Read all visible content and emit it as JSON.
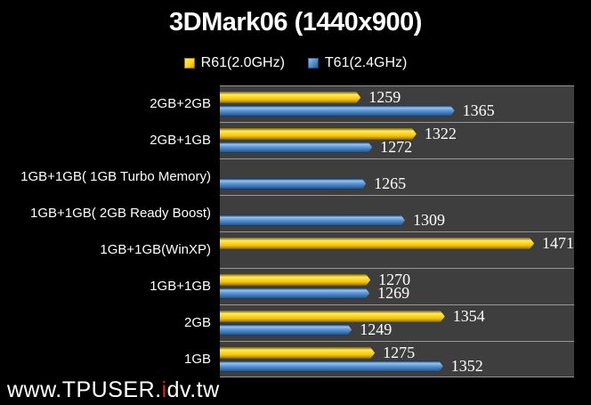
{
  "title": "3DMark06 (1440x900)",
  "watermark": {
    "prefix": "www.TPUSER.",
    "highlight": "i",
    "suffix": "dv.tw"
  },
  "colors": {
    "background": "#000000",
    "plot_background": "#3e3e3e",
    "gridline": "#969696",
    "text": "#ffffff",
    "watermark_accent": "#d42a1e",
    "series_r61": "#ffd81e",
    "series_t61": "#5f9ad8"
  },
  "chart_data": {
    "type": "bar",
    "orientation": "horizontal",
    "title": "3DMark06 (1440x900)",
    "xlabel": "",
    "ylabel": "",
    "xlim": [
      1100,
      1500
    ],
    "axis_labels_visible": false,
    "grid": "category-separators",
    "legend_position": "top",
    "value_labels": true,
    "categories": [
      "2GB+2GB",
      "2GB+1GB",
      "1GB+1GB( 1GB Turbo Memory)",
      "1GB+1GB( 2GB Ready Boost)",
      "1GB+1GB(WinXP)",
      "1GB+1GB",
      "2GB",
      "1GB"
    ],
    "series": [
      {
        "name": "R61(2.0GHz)",
        "color": "#ffd81e",
        "values": [
          1259,
          1322,
          null,
          null,
          1471,
          1270,
          1354,
          1275
        ]
      },
      {
        "name": "T61(2.4GHz)",
        "color": "#5f9ad8",
        "values": [
          1365,
          1272,
          1265,
          1309,
          null,
          1269,
          1249,
          1352
        ]
      }
    ]
  }
}
